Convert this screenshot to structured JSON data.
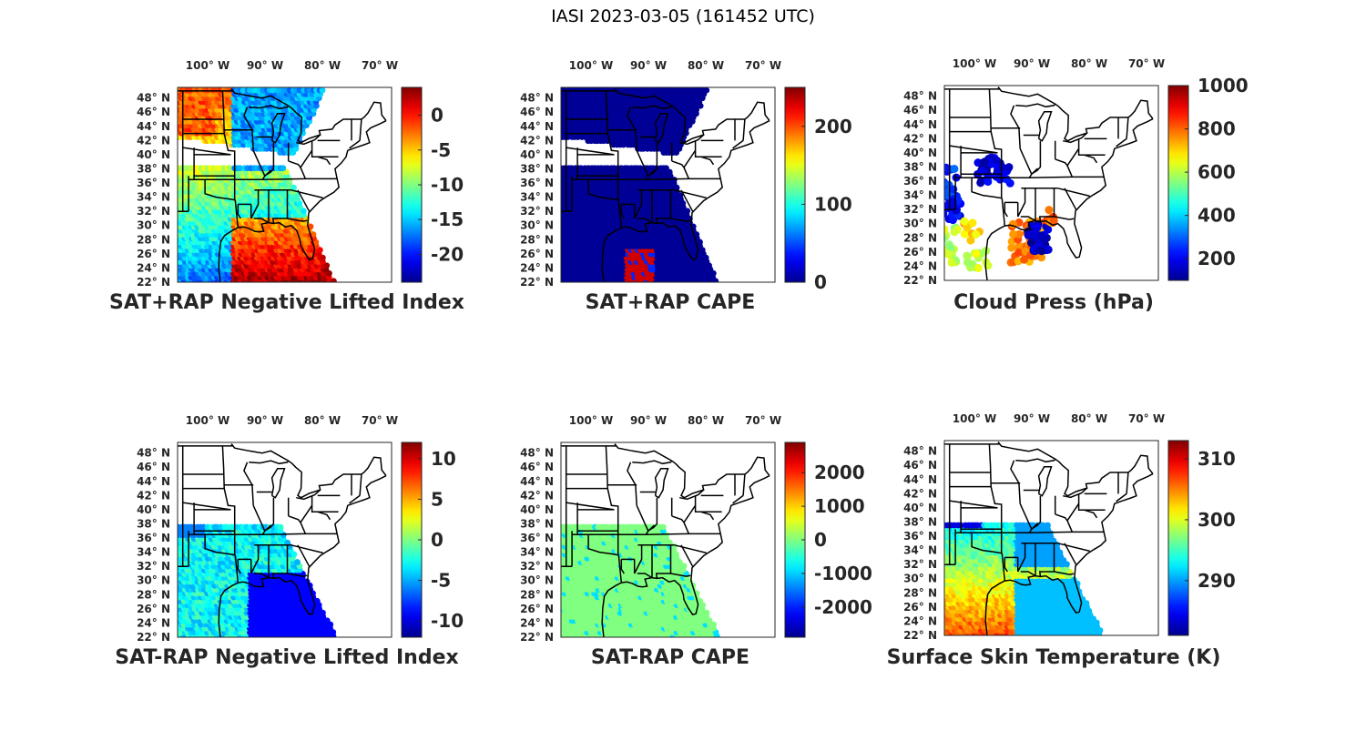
{
  "figure_title": "IASI 2023-03-05 (161452 UTC)",
  "lon_ticks": [
    "100",
    "90",
    "80",
    "70"
  ],
  "lon_hemisphere": "W",
  "lat_ticks": [
    "48",
    "46",
    "44",
    "42",
    "40",
    "38",
    "36",
    "34",
    "32",
    "30",
    "28",
    "26",
    "24",
    "22"
  ],
  "lat_hemisphere": "N",
  "degree_symbol": "°",
  "colormap": [
    "#00008f",
    "#0000ff",
    "#0080ff",
    "#00ffff",
    "#80ff80",
    "#ffff00",
    "#ff8000",
    "#ff0000",
    "#800000"
  ],
  "chart_data": [
    {
      "type": "heatmap",
      "title": "SAT+RAP Negative Lifted Index",
      "clim": [
        -24,
        4
      ],
      "colorbar_ticks": [
        "0",
        "-5",
        "-10",
        "-15",
        "-20"
      ],
      "colorbar_tick_values": [
        0,
        -5,
        -10,
        -15,
        -20
      ],
      "swath": "upper+lower",
      "field": "nli"
    },
    {
      "type": "heatmap",
      "title": "SAT+RAP CAPE",
      "clim": [
        0,
        250
      ],
      "colorbar_ticks": [
        "200",
        "100",
        "0"
      ],
      "colorbar_tick_values": [
        200,
        100,
        0
      ],
      "swath": "upper+lower",
      "field": "cape"
    },
    {
      "type": "heatmap",
      "title": "Cloud Press (hPa)",
      "clim": [
        100,
        1000
      ],
      "colorbar_ticks": [
        "1000",
        "800",
        "600",
        "400",
        "200"
      ],
      "colorbar_tick_values": [
        1000,
        800,
        600,
        400,
        200
      ],
      "swath": "scattered",
      "field": "cloud"
    },
    {
      "type": "heatmap",
      "title": "SAT-RAP Negative Lifted Index",
      "clim": [
        -12,
        12
      ],
      "colorbar_ticks": [
        "10",
        "5",
        "0",
        "-5",
        "-10"
      ],
      "colorbar_tick_values": [
        10,
        5,
        0,
        -5,
        -10
      ],
      "swath": "lower-only",
      "field": "dnli"
    },
    {
      "type": "heatmap",
      "title": "SAT-RAP CAPE",
      "clim": [
        -2900,
        2900
      ],
      "colorbar_ticks": [
        "2000",
        "1000",
        "0",
        "-1000",
        "-2000"
      ],
      "colorbar_tick_values": [
        2000,
        1000,
        0,
        -1000,
        -2000
      ],
      "swath": "lower-only",
      "field": "dcape"
    },
    {
      "type": "heatmap",
      "title": "Surface Skin Temperature (K)",
      "clim": [
        281,
        313
      ],
      "colorbar_ticks": [
        "310",
        "300",
        "290"
      ],
      "colorbar_tick_values": [
        310,
        300,
        290
      ],
      "swath": "lower-only",
      "field": "skin"
    }
  ]
}
